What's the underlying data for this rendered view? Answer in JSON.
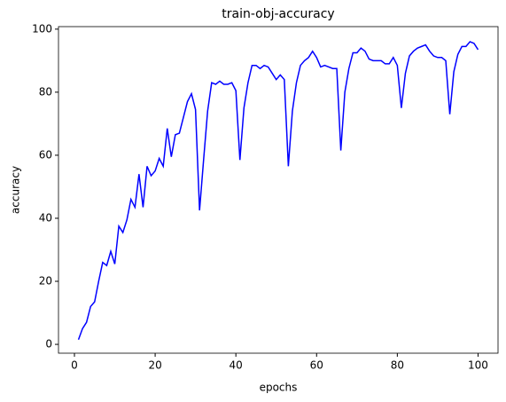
{
  "chart_data": {
    "type": "line",
    "title": "train-obj-accuracy",
    "x_label": "epochs",
    "y_label": "accuracy",
    "x": [
      1,
      2,
      3,
      4,
      5,
      6,
      7,
      8,
      9,
      10,
      11,
      12,
      13,
      14,
      15,
      16,
      17,
      18,
      19,
      20,
      21,
      22,
      23,
      24,
      25,
      26,
      27,
      28,
      29,
      30,
      31,
      32,
      33,
      34,
      35,
      36,
      37,
      38,
      39,
      40,
      41,
      42,
      43,
      44,
      45,
      46,
      47,
      48,
      49,
      50,
      51,
      52,
      53,
      54,
      55,
      56,
      57,
      58,
      59,
      60,
      61,
      62,
      63,
      64,
      65,
      66,
      67,
      68,
      69,
      70,
      71,
      72,
      73,
      74,
      75,
      76,
      77,
      78,
      79,
      80,
      81,
      82,
      83,
      84,
      85,
      86,
      87,
      88,
      89,
      90,
      91,
      92,
      93,
      94,
      95,
      96,
      97,
      98,
      99,
      100
    ],
    "series": [
      {
        "name": "accuracy",
        "color": "#0000ff",
        "values": [
          1.5,
          5,
          7,
          12,
          13.5,
          20,
          26,
          25,
          29.5,
          25.5,
          37.5,
          35.5,
          39.5,
          46,
          43.5,
          54,
          43.5,
          56.5,
          53.5,
          55,
          59,
          56.5,
          68.5,
          59.5,
          66.5,
          67,
          72,
          77,
          79.5,
          74.5,
          42.5,
          58.5,
          74,
          83,
          82.5,
          83.5,
          82.5,
          82.5,
          83,
          80.5,
          58.5,
          75,
          83,
          88.5,
          88.5,
          87.5,
          88.5,
          88,
          86,
          84,
          85.5,
          84,
          56.5,
          74,
          83,
          88.5,
          90,
          91,
          93,
          91,
          88,
          88.5,
          88,
          87.5,
          87.5,
          61.5,
          80,
          87.5,
          92.5,
          92.5,
          94,
          93,
          90.5,
          90,
          90,
          90,
          89,
          89,
          91,
          88.5,
          75,
          86,
          91.5,
          93,
          94,
          94.5,
          95,
          93,
          91.5,
          91,
          91,
          90,
          73,
          86.5,
          92,
          94.5,
          94.5,
          96,
          95.5,
          93.5
        ]
      }
    ],
    "xlim": [
      -3.95,
      104.95
    ],
    "ylim": [
      -2.8,
      100.8
    ],
    "xticks": [
      0,
      20,
      40,
      60,
      80,
      100
    ],
    "yticks": [
      0,
      20,
      40,
      60,
      80,
      100
    ],
    "grid": false
  }
}
